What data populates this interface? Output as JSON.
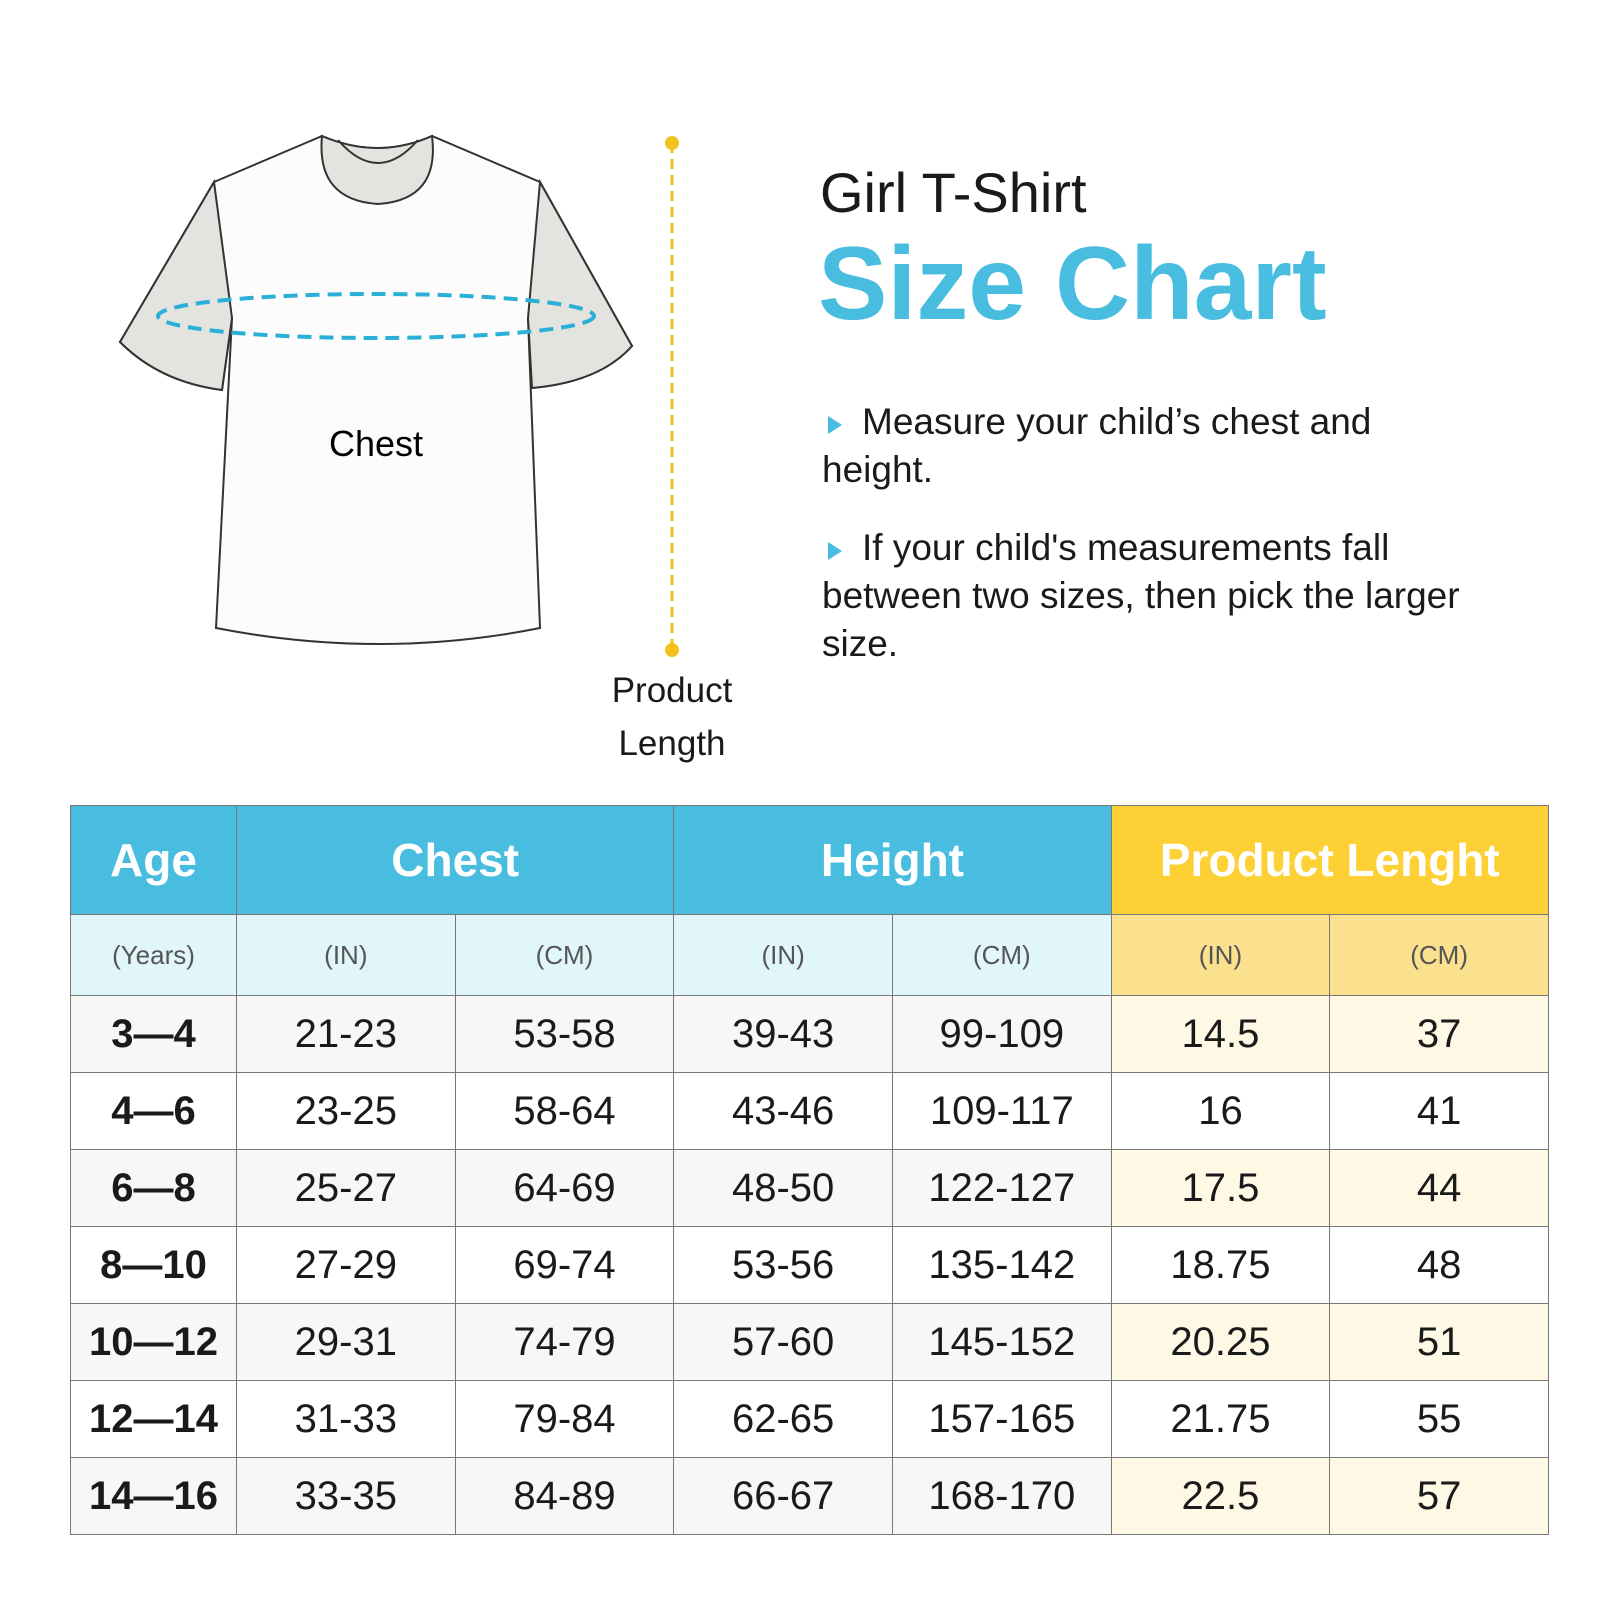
{
  "header": {
    "subtitle": "Girl T-Shirt",
    "title": "Size Chart"
  },
  "instructions": [
    "Measure your child’s chest and height.",
    "If your child's measurements fall between two sizes, then pick the larger size."
  ],
  "diagram": {
    "chest_label": "Chest",
    "length_label": "Product Length"
  },
  "table": {
    "groups": [
      "Age",
      "Chest",
      "Height",
      "Product Lenght"
    ],
    "units": [
      "(Years)",
      "(IN)",
      "(CM)",
      "(IN)",
      "(CM)",
      "(IN)",
      "(CM)"
    ],
    "rows": [
      [
        "3—4",
        "21-23",
        "53-58",
        "39-43",
        "99-109",
        "14.5",
        "37"
      ],
      [
        "4—6",
        "23-25",
        "58-64",
        "43-46",
        "109-117",
        "16",
        "41"
      ],
      [
        "6—8",
        "25-27",
        "64-69",
        "48-50",
        "122-127",
        "17.5",
        "44"
      ],
      [
        "8—10",
        "27-29",
        "69-74",
        "53-56",
        "135-142",
        "18.75",
        "48"
      ],
      [
        "10—12",
        "29-31",
        "74-79",
        "57-60",
        "145-152",
        "20.25",
        "51"
      ],
      [
        "12—14",
        "31-33",
        "79-84",
        "62-65",
        "157-165",
        "21.75",
        "55"
      ],
      [
        "14—16",
        "33-35",
        "84-89",
        "66-67",
        "168-170",
        "22.5",
        "57"
      ]
    ]
  }
}
